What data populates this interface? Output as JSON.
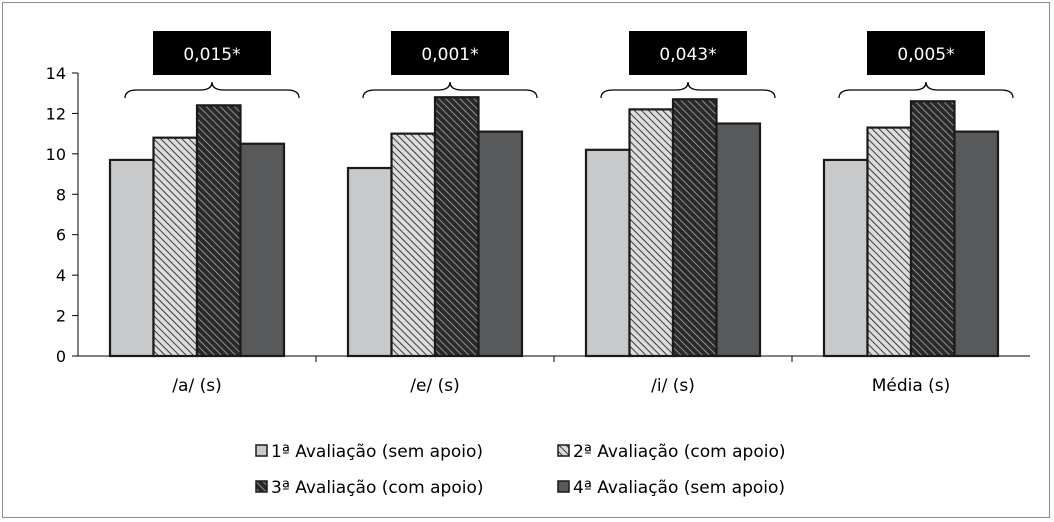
{
  "chart_data": {
    "type": "bar",
    "categories": [
      "/a/ (s)",
      "/e/ (s)",
      "/i/ (s)",
      "Média (s)"
    ],
    "series": [
      {
        "name": "1ª Avaliação (sem apoio)",
        "values": [
          9.7,
          9.3,
          10.2,
          9.7
        ],
        "fill": "#c8c9ca",
        "pattern": "solid"
      },
      {
        "name": "2ª Avaliação (com apoio)",
        "values": [
          10.8,
          11.0,
          12.2,
          11.3
        ],
        "fill": "#9a9a9a",
        "pattern": "hatch-light"
      },
      {
        "name": "3ª Avaliação (com apoio)",
        "values": [
          12.4,
          12.8,
          12.7,
          12.6
        ],
        "fill": "#5a5a5a",
        "pattern": "hatch-dark"
      },
      {
        "name": "4ª Avaliação (sem apoio)",
        "values": [
          10.5,
          11.1,
          11.5,
          11.1
        ],
        "fill": "#58595b",
        "pattern": "solid"
      }
    ],
    "annotations": [
      "0,015*",
      "0,001*",
      "0,043*",
      "0,005*"
    ],
    "ylim": [
      0,
      14
    ],
    "yticks": [
      0,
      2,
      4,
      6,
      8,
      10,
      12,
      14
    ],
    "grid": false,
    "legend_position": "bottom",
    "title": "",
    "xlabel": "",
    "ylabel": ""
  }
}
